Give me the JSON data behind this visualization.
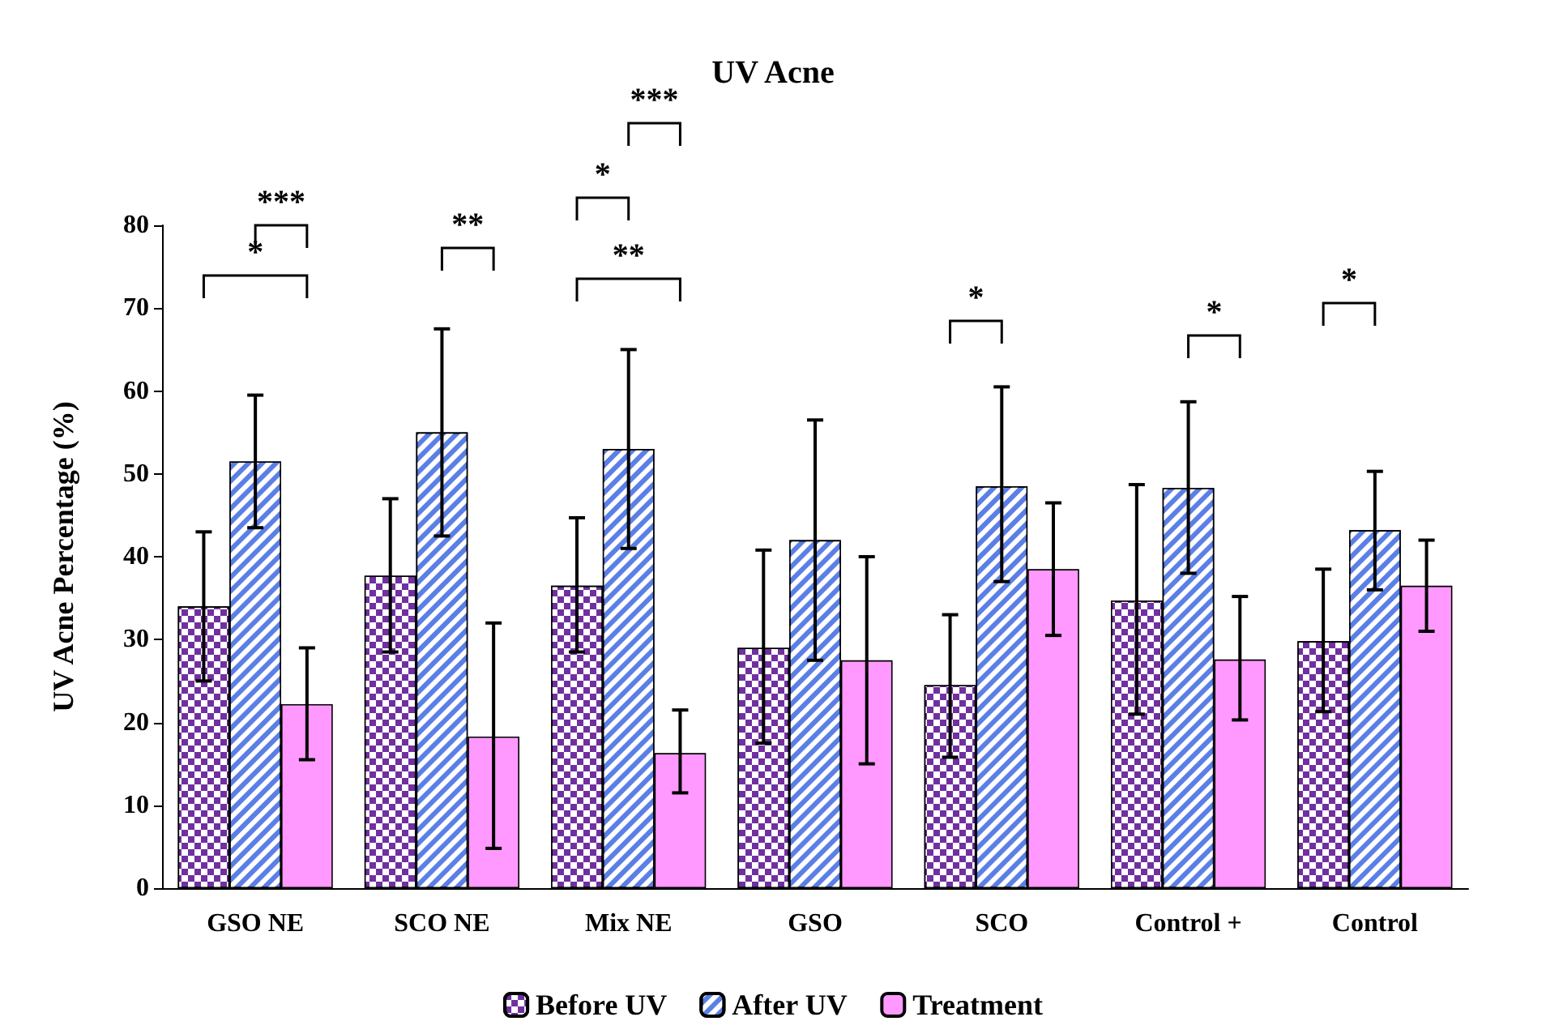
{
  "chart_data": {
    "type": "bar",
    "title": "UV Acne",
    "ylabel": "UV Acne Percentage (%)",
    "categories": [
      "GSO NE",
      "SCO NE",
      "Mix NE",
      "GSO",
      "SCO",
      "Control +",
      "Control"
    ],
    "series": [
      {
        "name": "Before UV",
        "color": "#7030a0",
        "values": [
          34,
          37.7,
          36.5,
          29,
          24.5,
          34.7,
          29.8
        ],
        "errors": [
          [
            25,
            43
          ],
          [
            28.5,
            47
          ],
          [
            28.5,
            44.7
          ],
          [
            17.5,
            40.8
          ],
          [
            15.8,
            33
          ],
          [
            21,
            48.7
          ],
          [
            21.3,
            38.5
          ]
        ]
      },
      {
        "name": "After UV",
        "color": "#5b7fe6",
        "values": [
          51.5,
          55,
          53,
          42,
          48.5,
          48.3,
          43.2
        ],
        "errors": [
          [
            43.5,
            59.5
          ],
          [
            42.5,
            67.5
          ],
          [
            41,
            65
          ],
          [
            27.5,
            56.5
          ],
          [
            37,
            60.5
          ],
          [
            38,
            58.7
          ],
          [
            36,
            50.3
          ]
        ]
      },
      {
        "name": "Treatment",
        "color": "#ff99ff",
        "values": [
          22.2,
          18.3,
          16.3,
          27.5,
          38.5,
          27.6,
          36.5
        ],
        "errors": [
          [
            15.5,
            29
          ],
          [
            4.8,
            32
          ],
          [
            11.5,
            21.5
          ],
          [
            15,
            40
          ],
          [
            30.5,
            46.5
          ],
          [
            20.3,
            35.2
          ],
          [
            31,
            42
          ]
        ]
      }
    ],
    "ylim": [
      0,
      80
    ],
    "yticks": [
      0,
      10,
      20,
      30,
      40,
      50,
      60,
      70,
      80
    ],
    "annotations": [
      "*",
      "***",
      "**",
      "*",
      "***",
      "**",
      "*",
      "*",
      "*"
    ],
    "legend": "bottom",
    "grid": false
  }
}
